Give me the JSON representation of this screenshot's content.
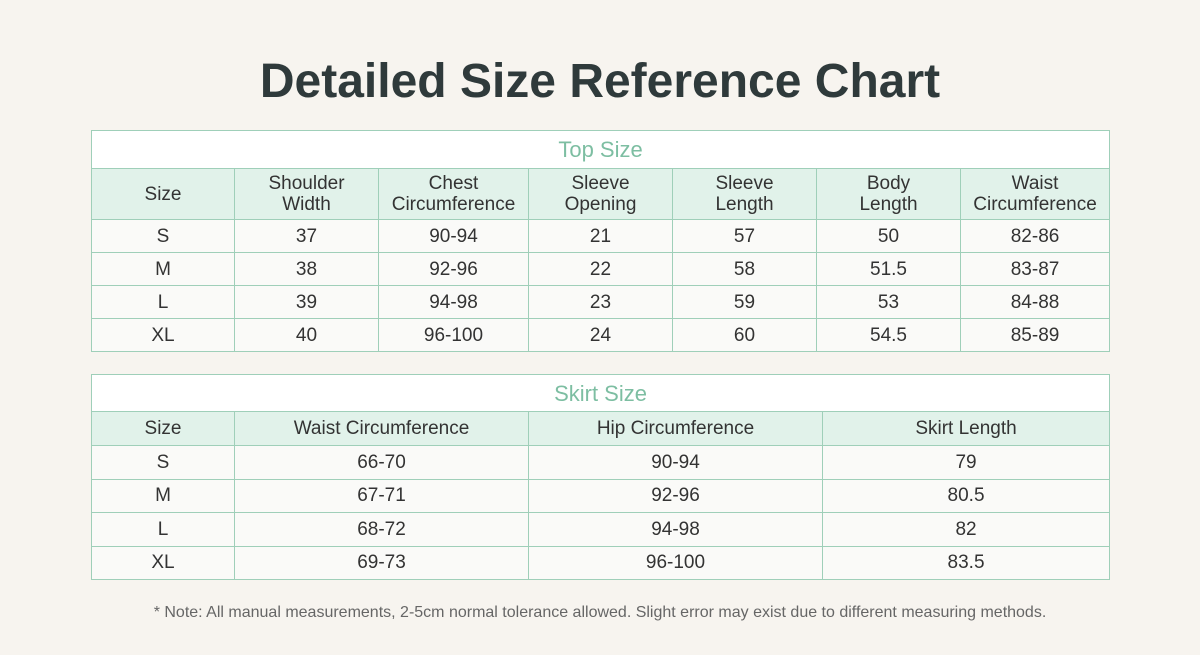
{
  "title": "Detailed Size Reference Chart",
  "tables": [
    {
      "caption": "Top Size",
      "header": [
        "Size",
        "Shoulder\nWidth",
        "Chest\nCircumference",
        "Sleeve\nOpening",
        "Sleeve\nLength",
        "Body\nLength",
        "Waist\nCircumference"
      ],
      "rows": [
        [
          "S",
          "37",
          "90-94",
          "21",
          "57",
          "50",
          "82-86"
        ],
        [
          "M",
          "38",
          "92-96",
          "22",
          "58",
          "51.5",
          "83-87"
        ],
        [
          "L",
          "39",
          "94-98",
          "23",
          "59",
          "53",
          "84-88"
        ],
        [
          "XL",
          "40",
          "96-100",
          "24",
          "60",
          "54.5",
          "85-89"
        ]
      ]
    },
    {
      "caption": "Skirt Size",
      "header": [
        "Size",
        "Waist Circumference",
        "Hip Circumference",
        "Skirt Length"
      ],
      "rows": [
        [
          "S",
          "66-70",
          "90-94",
          "79"
        ],
        [
          "M",
          "67-71",
          "92-96",
          "80.5"
        ],
        [
          "L",
          "68-72",
          "94-98",
          "82"
        ],
        [
          "XL",
          "69-73",
          "96-100",
          "83.5"
        ]
      ]
    }
  ],
  "note": "* Note: All manual measurements, 2-5cm normal tolerance allowed. Slight error may exist due to different measuring methods."
}
